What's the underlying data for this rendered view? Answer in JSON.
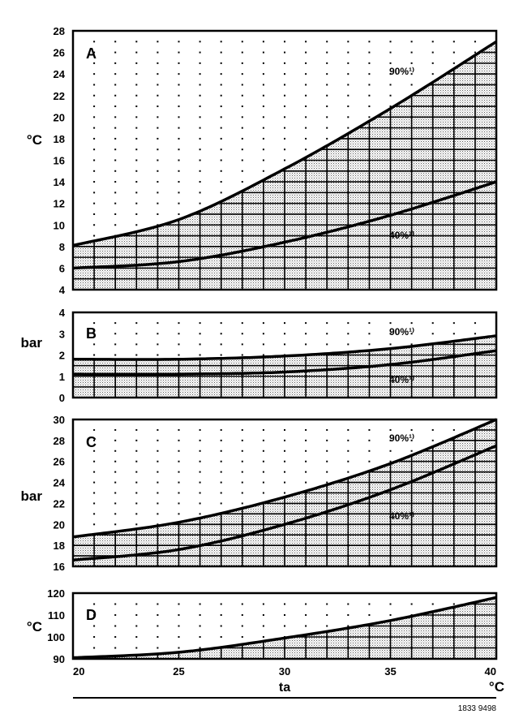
{
  "chart_data": [
    {
      "type": "area",
      "panel": "A",
      "ylabel": "°C",
      "ylim": [
        4,
        28
      ],
      "yticks": [
        "4",
        "6",
        "8",
        "10",
        "12",
        "14",
        "16",
        "18",
        "20",
        "22",
        "24",
        "26",
        "28"
      ],
      "x": [
        20,
        25,
        30,
        35,
        40
      ],
      "series": [
        {
          "name": "90%¹⁾",
          "values": [
            8.1,
            10.5,
            15.2,
            20.8,
            27.0
          ]
        },
        {
          "name": "40%¹⁾",
          "values": [
            6.0,
            6.6,
            8.4,
            10.9,
            14.0
          ]
        }
      ]
    },
    {
      "type": "area",
      "panel": "B",
      "ylabel": "bar",
      "ylim": [
        0,
        4
      ],
      "yticks": [
        "0",
        "1",
        "2",
        "3",
        "4"
      ],
      "x": [
        20,
        25,
        30,
        35,
        40
      ],
      "series": [
        {
          "name": "90%¹⁾",
          "values": [
            1.8,
            1.8,
            1.95,
            2.3,
            2.9
          ]
        },
        {
          "name": "40%¹⁾",
          "values": [
            1.1,
            1.1,
            1.2,
            1.55,
            2.2
          ]
        }
      ]
    },
    {
      "type": "area",
      "panel": "C",
      "ylabel": "bar",
      "ylim": [
        16,
        30
      ],
      "yticks": [
        "16",
        "18",
        "20",
        "22",
        "24",
        "26",
        "28",
        "30"
      ],
      "x": [
        20,
        25,
        30,
        35,
        40
      ],
      "series": [
        {
          "name": "90%¹⁾",
          "values": [
            18.8,
            20.2,
            22.6,
            25.8,
            30.0
          ]
        },
        {
          "name": "40%¹⁾",
          "values": [
            16.6,
            17.6,
            20.0,
            23.3,
            27.5
          ]
        }
      ]
    },
    {
      "type": "area",
      "panel": "D",
      "ylabel": "°C",
      "ylim": [
        90,
        120
      ],
      "yticks": [
        "90",
        "100",
        "110",
        "120"
      ],
      "x": [
        20,
        25,
        30,
        35,
        40
      ],
      "series": [
        {
          "name": "",
          "values": [
            90.5,
            93.0,
            99.5,
            107.5,
            118.0
          ]
        }
      ]
    }
  ],
  "xaxis": {
    "xlim": [
      20,
      40
    ],
    "ticks": [
      "20",
      "25",
      "30",
      "35",
      "40"
    ],
    "label": "ta",
    "unit": "°C"
  },
  "reference": "1833  9498",
  "colors": {
    "ink": "#000000",
    "paper": "#ffffff",
    "stipple": "#b4b4b4"
  }
}
